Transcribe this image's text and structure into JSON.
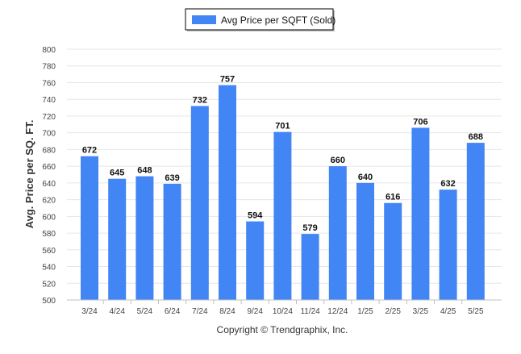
{
  "chart_data": {
    "type": "bar",
    "title": "",
    "xlabel": "",
    "ylabel": "Avg. Price per SQ. FT.",
    "categories": [
      "3/24",
      "4/24",
      "5/24",
      "6/24",
      "7/24",
      "8/24",
      "9/24",
      "10/24",
      "11/24",
      "12/24",
      "1/25",
      "2/25",
      "3/25",
      "4/25",
      "5/25"
    ],
    "series": [
      {
        "name": "Avg Price per SQFT (Sold)",
        "values": [
          672,
          645,
          648,
          639,
          732,
          757,
          594,
          701,
          579,
          660,
          640,
          616,
          706,
          632,
          688
        ],
        "color": "#4285f4"
      }
    ],
    "ylim": [
      500,
      800
    ],
    "yticks": [
      500,
      520,
      540,
      560,
      580,
      600,
      620,
      640,
      660,
      680,
      700,
      720,
      740,
      760,
      780,
      800
    ],
    "grid": true,
    "legend_position": "top-center",
    "data_labels": true
  },
  "footer": {
    "copyright": "Copyright © Trendgraphix, Inc."
  },
  "colors": {
    "bar": "#4285f4",
    "grid": "#e6e6e6",
    "axis_text": "#333333",
    "legend_border": "#000000"
  }
}
